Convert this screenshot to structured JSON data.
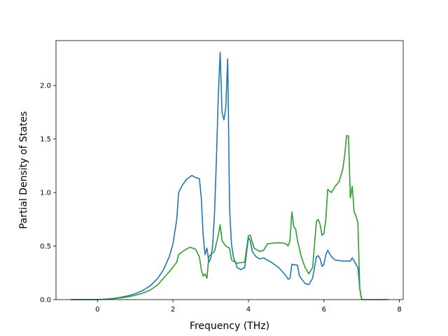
{
  "chart_data": {
    "type": "line",
    "title": "",
    "xlabel": "Frequency (THz)",
    "ylabel": "Partial Density of States",
    "xlim": [
      -1.1,
      8.1
    ],
    "ylim": [
      0.0,
      2.42
    ],
    "xticks": [
      0,
      2,
      4,
      6,
      8
    ],
    "xtick_labels": [
      "0",
      "2",
      "4",
      "6",
      "8"
    ],
    "yticks": [
      0.0,
      0.5,
      1.0,
      1.5,
      2.0
    ],
    "ytick_labels": [
      "0.0",
      "0.5",
      "1.0",
      "1.5",
      "2.0"
    ],
    "grid": false,
    "legend": "none",
    "series": [
      {
        "color": "#1f77b4",
        "points": [
          [
            -0.7,
            0.0
          ],
          [
            0.0,
            0.0
          ],
          [
            0.2,
            0.004
          ],
          [
            0.4,
            0.01
          ],
          [
            0.6,
            0.02
          ],
          [
            0.8,
            0.035
          ],
          [
            1.0,
            0.055
          ],
          [
            1.2,
            0.085
          ],
          [
            1.4,
            0.13
          ],
          [
            1.6,
            0.2
          ],
          [
            1.75,
            0.28
          ],
          [
            1.9,
            0.4
          ],
          [
            2.0,
            0.52
          ],
          [
            2.1,
            0.75
          ],
          [
            2.15,
            1.0
          ],
          [
            2.25,
            1.07
          ],
          [
            2.35,
            1.12
          ],
          [
            2.5,
            1.16
          ],
          [
            2.6,
            1.14
          ],
          [
            2.7,
            1.13
          ],
          [
            2.75,
            0.95
          ],
          [
            2.8,
            0.6
          ],
          [
            2.85,
            0.42
          ],
          [
            2.9,
            0.48
          ],
          [
            2.95,
            0.35
          ],
          [
            3.0,
            0.38
          ],
          [
            3.05,
            0.5
          ],
          [
            3.1,
            0.8
          ],
          [
            3.15,
            1.3
          ],
          [
            3.2,
            1.9
          ],
          [
            3.25,
            2.31
          ],
          [
            3.3,
            1.75
          ],
          [
            3.35,
            1.68
          ],
          [
            3.4,
            1.8
          ],
          [
            3.45,
            2.25
          ],
          [
            3.5,
            0.85
          ],
          [
            3.55,
            0.52
          ],
          [
            3.6,
            0.4
          ],
          [
            3.7,
            0.3
          ],
          [
            3.8,
            0.28
          ],
          [
            3.9,
            0.3
          ],
          [
            4.0,
            0.58
          ],
          [
            4.05,
            0.55
          ],
          [
            4.1,
            0.45
          ],
          [
            4.2,
            0.4
          ],
          [
            4.3,
            0.38
          ],
          [
            4.4,
            0.39
          ],
          [
            4.6,
            0.35
          ],
          [
            4.8,
            0.3
          ],
          [
            5.0,
            0.22
          ],
          [
            5.05,
            0.19
          ],
          [
            5.1,
            0.2
          ],
          [
            5.15,
            0.33
          ],
          [
            5.3,
            0.32
          ],
          [
            5.35,
            0.22
          ],
          [
            5.5,
            0.15
          ],
          [
            5.6,
            0.14
          ],
          [
            5.7,
            0.2
          ],
          [
            5.8,
            0.4
          ],
          [
            5.85,
            0.41
          ],
          [
            5.9,
            0.38
          ],
          [
            5.95,
            0.31
          ],
          [
            6.0,
            0.33
          ],
          [
            6.05,
            0.42
          ],
          [
            6.1,
            0.46
          ],
          [
            6.2,
            0.4
          ],
          [
            6.3,
            0.37
          ],
          [
            6.5,
            0.36
          ],
          [
            6.7,
            0.36
          ],
          [
            6.75,
            0.39
          ],
          [
            6.8,
            0.36
          ],
          [
            6.85,
            0.33
          ],
          [
            6.9,
            0.3
          ],
          [
            6.95,
            0.1
          ],
          [
            7.0,
            0.0
          ],
          [
            7.7,
            0.0
          ]
        ]
      },
      {
        "color": "#2ca02c",
        "points": [
          [
            -0.7,
            0.0
          ],
          [
            0.0,
            0.0
          ],
          [
            0.2,
            0.003
          ],
          [
            0.4,
            0.008
          ],
          [
            0.6,
            0.015
          ],
          [
            0.8,
            0.025
          ],
          [
            1.0,
            0.04
          ],
          [
            1.2,
            0.06
          ],
          [
            1.4,
            0.09
          ],
          [
            1.6,
            0.14
          ],
          [
            1.8,
            0.22
          ],
          [
            1.95,
            0.28
          ],
          [
            2.1,
            0.35
          ],
          [
            2.15,
            0.42
          ],
          [
            2.3,
            0.46
          ],
          [
            2.45,
            0.49
          ],
          [
            2.6,
            0.47
          ],
          [
            2.7,
            0.4
          ],
          [
            2.75,
            0.28
          ],
          [
            2.8,
            0.22
          ],
          [
            2.85,
            0.24
          ],
          [
            2.9,
            0.2
          ],
          [
            2.95,
            0.4
          ],
          [
            3.0,
            0.42
          ],
          [
            3.1,
            0.45
          ],
          [
            3.2,
            0.6
          ],
          [
            3.25,
            0.7
          ],
          [
            3.3,
            0.55
          ],
          [
            3.4,
            0.5
          ],
          [
            3.5,
            0.48
          ],
          [
            3.55,
            0.37
          ],
          [
            3.7,
            0.34
          ],
          [
            3.9,
            0.35
          ],
          [
            4.0,
            0.6
          ],
          [
            4.05,
            0.6
          ],
          [
            4.15,
            0.48
          ],
          [
            4.3,
            0.45
          ],
          [
            4.4,
            0.46
          ],
          [
            4.5,
            0.52
          ],
          [
            4.7,
            0.53
          ],
          [
            4.9,
            0.53
          ],
          [
            5.0,
            0.52
          ],
          [
            5.05,
            0.5
          ],
          [
            5.1,
            0.55
          ],
          [
            5.15,
            0.82
          ],
          [
            5.2,
            0.68
          ],
          [
            5.25,
            0.66
          ],
          [
            5.3,
            0.55
          ],
          [
            5.4,
            0.4
          ],
          [
            5.5,
            0.3
          ],
          [
            5.6,
            0.24
          ],
          [
            5.7,
            0.3
          ],
          [
            5.8,
            0.73
          ],
          [
            5.85,
            0.75
          ],
          [
            5.9,
            0.7
          ],
          [
            5.95,
            0.6
          ],
          [
            6.0,
            0.62
          ],
          [
            6.05,
            0.75
          ],
          [
            6.1,
            1.03
          ],
          [
            6.2,
            1.0
          ],
          [
            6.3,
            1.06
          ],
          [
            6.4,
            1.1
          ],
          [
            6.5,
            1.22
          ],
          [
            6.55,
            1.35
          ],
          [
            6.6,
            1.53
          ],
          [
            6.65,
            1.53
          ],
          [
            6.7,
            0.95
          ],
          [
            6.75,
            1.06
          ],
          [
            6.8,
            0.82
          ],
          [
            6.85,
            0.78
          ],
          [
            6.9,
            0.72
          ],
          [
            6.95,
            0.1
          ],
          [
            7.0,
            0.0
          ]
        ]
      }
    ]
  }
}
